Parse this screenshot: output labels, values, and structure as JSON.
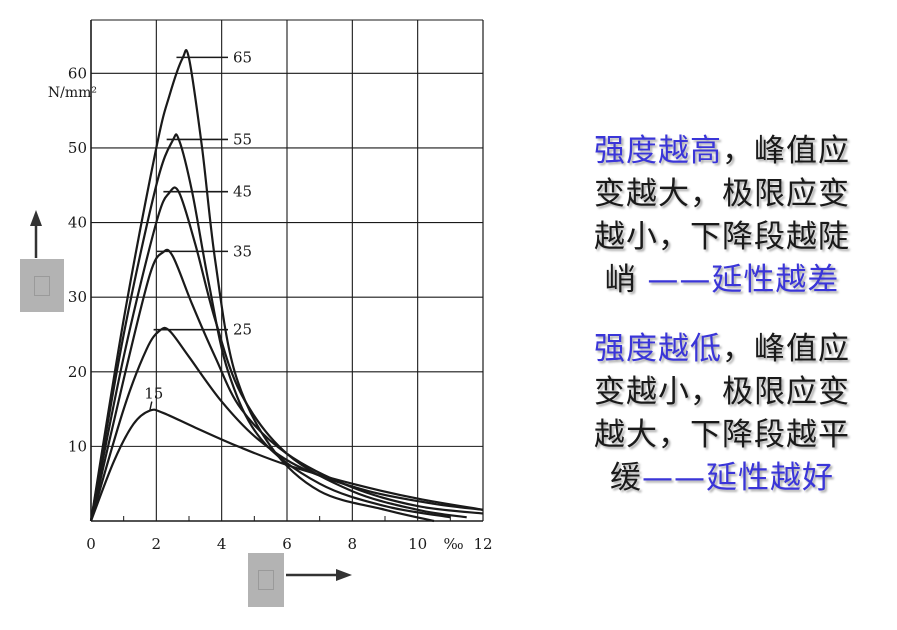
{
  "chart_data": {
    "type": "line",
    "xlabel": "‰",
    "ylabel": "N/mm²",
    "xlim": [
      0,
      12
    ],
    "ylim": [
      0,
      65
    ],
    "x_ticks": [
      "0",
      "2",
      "4",
      "6",
      "8",
      "10",
      "12"
    ],
    "y_ticks": [
      "10",
      "20",
      "30",
      "40",
      "50",
      "60"
    ],
    "grid": true,
    "series": [
      {
        "name": "65",
        "points": [
          [
            0,
            0
          ],
          [
            1,
            27
          ],
          [
            2,
            50
          ],
          [
            2.4,
            57
          ],
          [
            2.8,
            62
          ],
          [
            3.0,
            62
          ],
          [
            3.4,
            50
          ],
          [
            3.8,
            35
          ],
          [
            4.4,
            20
          ],
          [
            5.5,
            10
          ],
          [
            7,
            4
          ],
          [
            9,
            1.5
          ],
          [
            10.5,
            0
          ]
        ]
      },
      {
        "name": "55",
        "points": [
          [
            0,
            0
          ],
          [
            1,
            25
          ],
          [
            2,
            45
          ],
          [
            2.5,
            51
          ],
          [
            2.7,
            51
          ],
          [
            3.1,
            44
          ],
          [
            3.6,
            32
          ],
          [
            4.2,
            20
          ],
          [
            5.2,
            11
          ],
          [
            7,
            5
          ],
          [
            9,
            2
          ],
          [
            11,
            0.5
          ]
        ]
      },
      {
        "name": "45",
        "points": [
          [
            0,
            0
          ],
          [
            1,
            22
          ],
          [
            2,
            40
          ],
          [
            2.4,
            44
          ],
          [
            2.7,
            44
          ],
          [
            3.2,
            37
          ],
          [
            3.8,
            27
          ],
          [
            4.6,
            17
          ],
          [
            6,
            9
          ],
          [
            8,
            4
          ],
          [
            10,
            1.5
          ],
          [
            11.5,
            0.5
          ]
        ]
      },
      {
        "name": "35",
        "points": [
          [
            0,
            0
          ],
          [
            1,
            19
          ],
          [
            1.8,
            33
          ],
          [
            2.2,
            36
          ],
          [
            2.5,
            35.5
          ],
          [
            3.1,
            29
          ],
          [
            3.8,
            22
          ],
          [
            4.6,
            15
          ],
          [
            6,
            9
          ],
          [
            8,
            4.5
          ],
          [
            10,
            2
          ],
          [
            12,
            1
          ]
        ]
      },
      {
        "name": "25",
        "points": [
          [
            0,
            0
          ],
          [
            1,
            15
          ],
          [
            1.7,
            23
          ],
          [
            2.1,
            25.5
          ],
          [
            2.4,
            25.5
          ],
          [
            3,
            22
          ],
          [
            4,
            16
          ],
          [
            5.1,
            11
          ],
          [
            6.5,
            7
          ],
          [
            8.5,
            4
          ],
          [
            10.5,
            2.3
          ],
          [
            12,
            1.5
          ]
        ]
      },
      {
        "name": "15",
        "points": [
          [
            0,
            0
          ],
          [
            0.7,
            8
          ],
          [
            1.3,
            13
          ],
          [
            1.8,
            14.8
          ],
          [
            2.2,
            14.5
          ],
          [
            3.2,
            12.5
          ],
          [
            4.5,
            10
          ],
          [
            6,
            7.5
          ],
          [
            8,
            5
          ],
          [
            10,
            3
          ],
          [
            12,
            1.5
          ]
        ]
      }
    ],
    "point_labels": [
      "65",
      "55",
      "45",
      "35",
      "25",
      "15"
    ]
  },
  "text_panel": {
    "para1": {
      "hl": "强度越高",
      "rest1": "，峰值应",
      "line2": "变越大，极限应变",
      "line3": "越小，下降段越陡",
      "line4a": "峭 ",
      "line4b": "——延性越差"
    },
    "para2": {
      "hl": "强度越低",
      "rest1": "，峰值应",
      "line2": "变越小，极限应变",
      "line3": "越大，下降段越平",
      "line4a": "缓",
      "line4b": "——延性越好"
    }
  },
  "colors": {
    "highlight": "#3a35d8",
    "curve": "#1a1a1a",
    "placeholder": "#b3b3b3"
  }
}
